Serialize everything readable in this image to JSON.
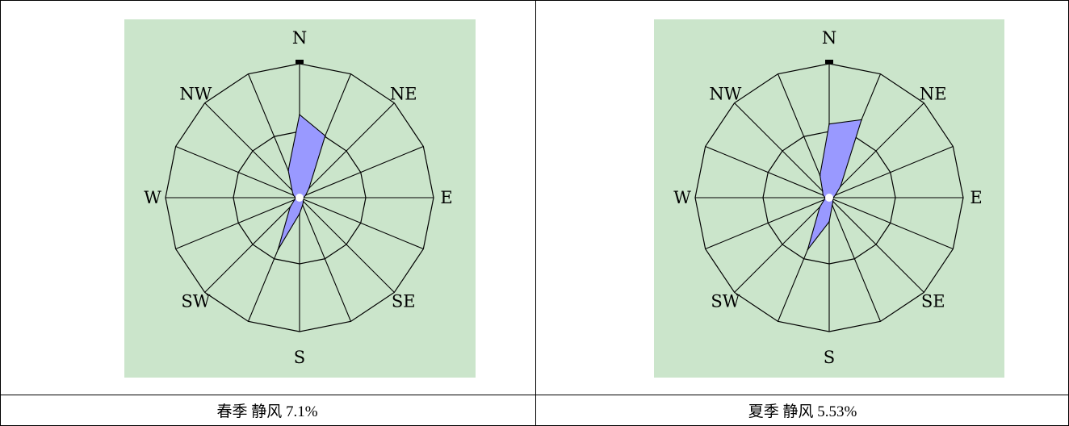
{
  "colors": {
    "background": "#cbe5cb",
    "petal_fill": "#9999ff",
    "line": "#000000"
  },
  "chart_data": [
    {
      "type": "wind-rose",
      "directions": [
        "N",
        "NNE",
        "NE",
        "ENE",
        "E",
        "ESE",
        "SE",
        "SSE",
        "S",
        "SSW",
        "SW",
        "WSW",
        "W",
        "WNW",
        "NW",
        "NNW"
      ],
      "direction_labels": [
        "N",
        "NE",
        "E",
        "SE",
        "S",
        "SW",
        "W",
        "NW"
      ],
      "values": [
        0.62,
        0.5,
        0.1,
        0.05,
        0.03,
        0.03,
        0.04,
        0.06,
        0.12,
        0.42,
        0.1,
        0.04,
        0.03,
        0.05,
        0.08,
        0.22
      ],
      "caption": "春季 静风 7.1%"
    },
    {
      "type": "wind-rose",
      "directions": [
        "N",
        "NNE",
        "NE",
        "ENE",
        "E",
        "ESE",
        "SE",
        "SSE",
        "S",
        "SSW",
        "SW",
        "WSW",
        "W",
        "WNW",
        "NW",
        "NNW"
      ],
      "direction_labels": [
        "N",
        "NE",
        "E",
        "SE",
        "S",
        "SW",
        "W",
        "NW"
      ],
      "values": [
        0.55,
        0.63,
        0.12,
        0.05,
        0.03,
        0.03,
        0.04,
        0.06,
        0.18,
        0.42,
        0.1,
        0.04,
        0.03,
        0.05,
        0.07,
        0.18
      ],
      "caption": "夏季 静风 5.53%"
    }
  ]
}
